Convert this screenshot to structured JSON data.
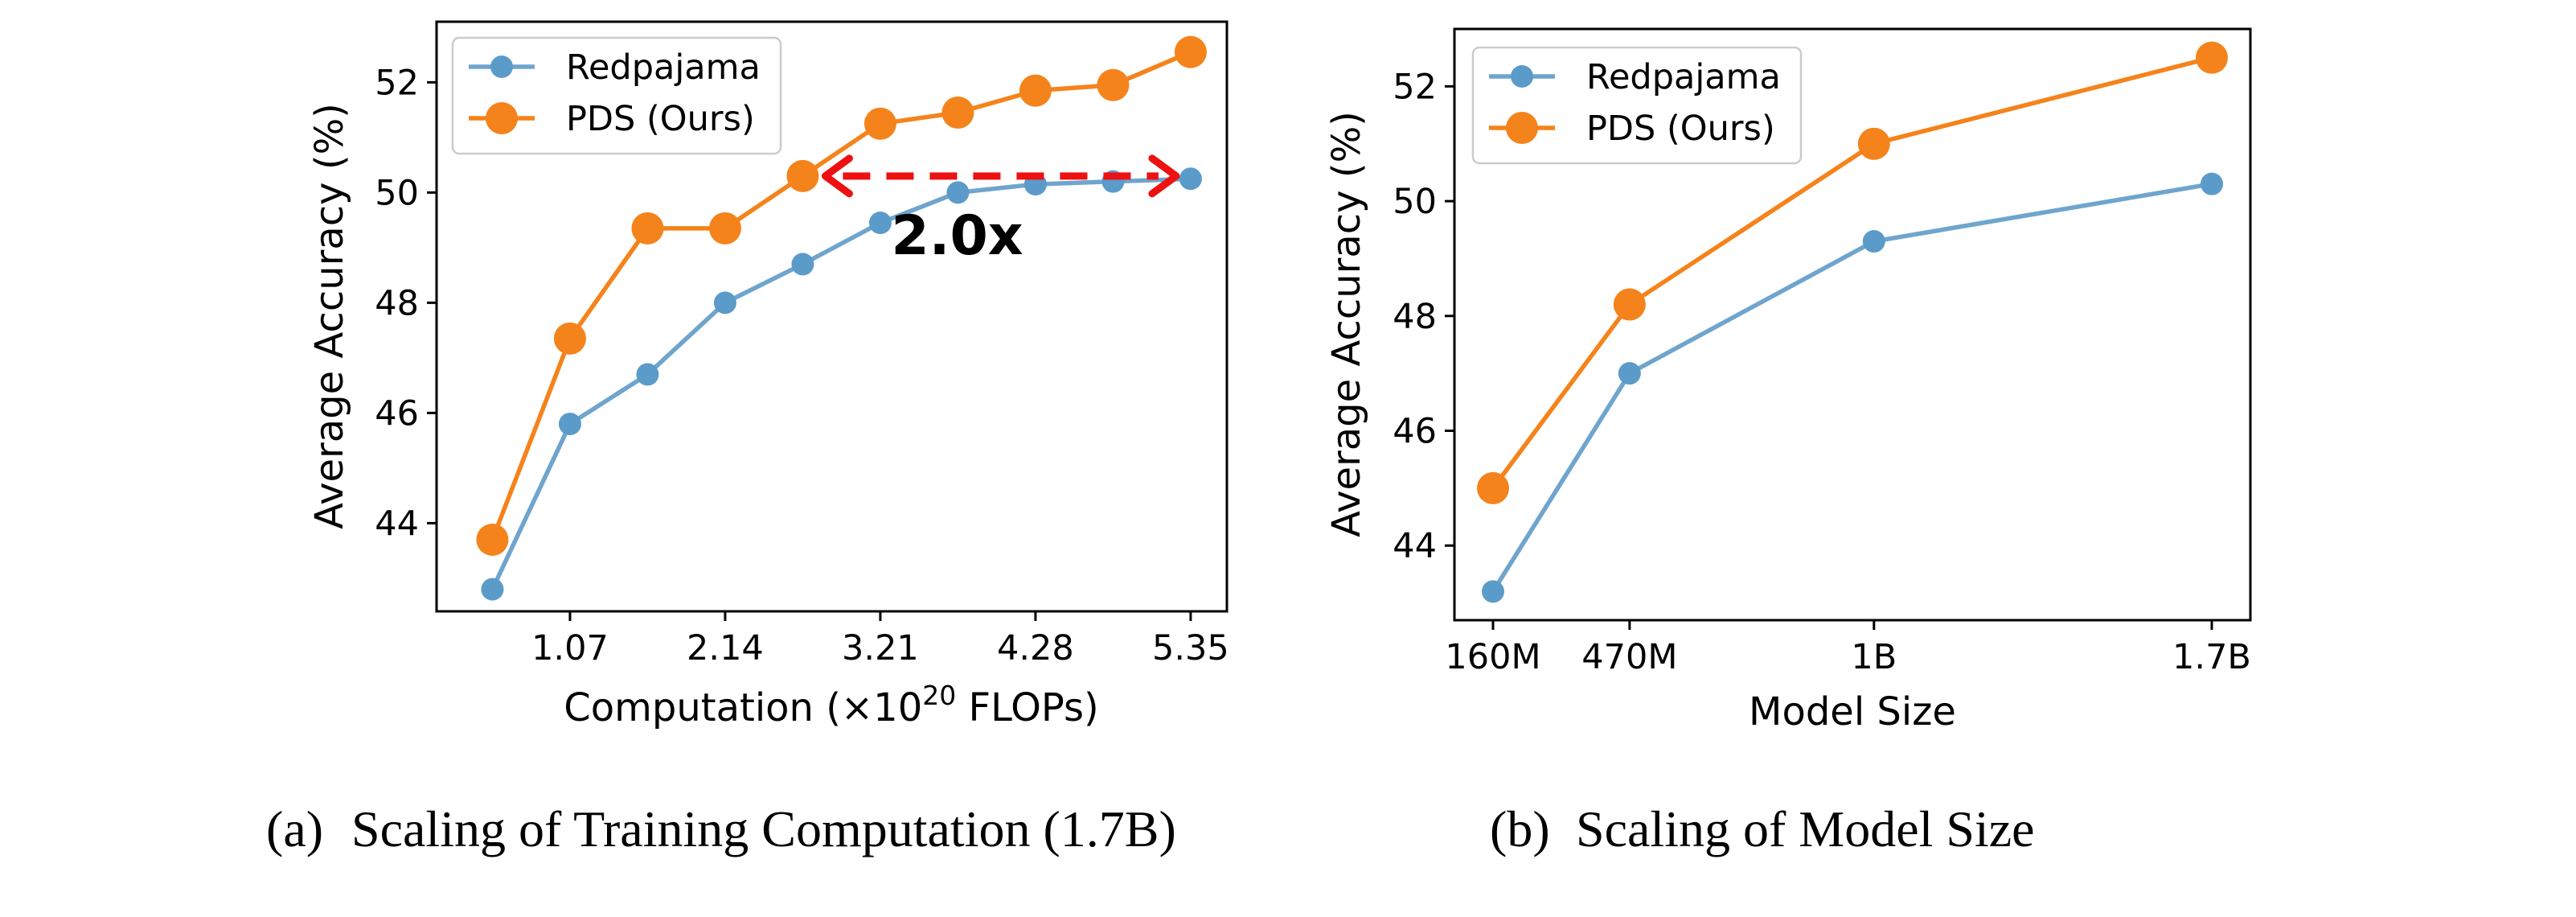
{
  "colors": {
    "redpajama": "#6fa5cd",
    "redpajama_marker": "#5b9bc9",
    "pds": "#f5831b",
    "annotation": "#ee1111",
    "axes": "#000000"
  },
  "chart_data": [
    {
      "type": "line",
      "xlabel": "Computation (×10",
      "xlabel_sup": "20",
      "xlabel_suffix": " FLOPs)",
      "ylabel": "Average Accuracy (%)",
      "xlim": [
        0.15,
        5.6
      ],
      "ylim": [
        42.4,
        53.1
      ],
      "xticks": [
        1.07,
        2.14,
        3.21,
        4.28,
        5.35
      ],
      "xtick_labels": [
        "1.07",
        "2.14",
        "3.21",
        "4.28",
        "5.35"
      ],
      "yticks": [
        44,
        46,
        48,
        50,
        52
      ],
      "ytick_labels": [
        "44",
        "46",
        "48",
        "50",
        "52"
      ],
      "legend_position": "upper-left",
      "series": [
        {
          "name": "Redpajama",
          "x": [
            0.535,
            1.07,
            1.605,
            2.14,
            2.675,
            3.21,
            3.745,
            4.28,
            4.815,
            5.35
          ],
          "y": [
            42.8,
            45.8,
            46.7,
            48.0,
            48.7,
            49.45,
            50.0,
            50.15,
            50.2,
            50.25
          ]
        },
        {
          "name": "PDS (Ours)",
          "x": [
            0.535,
            1.07,
            1.605,
            2.14,
            2.675,
            3.21,
            3.745,
            4.28,
            4.815,
            5.35
          ],
          "y": [
            43.7,
            47.35,
            49.35,
            49.35,
            50.3,
            51.25,
            51.45,
            51.85,
            51.95,
            52.55
          ]
        }
      ],
      "annotation": {
        "text": "2.0x",
        "arrow_from_x": 2.675,
        "arrow_to_x": 5.35,
        "arrow_y": 50.3,
        "text_x": 3.74,
        "text_y": 49.0
      },
      "caption_label": "(a)",
      "caption": "Scaling of Training Computation (1.7B)"
    },
    {
      "type": "line",
      "xlabel": "Model Size",
      "ylabel": "Average Accuracy (%)",
      "xlim": [
        0.0,
        1.0
      ],
      "ylim": [
        42.7,
        53.0
      ],
      "x_categories": [
        "160M",
        "470M",
        "1B",
        "1.7B"
      ],
      "yticks": [
        44,
        46,
        48,
        50,
        52
      ],
      "ytick_labels": [
        "44",
        "46",
        "48",
        "50",
        "52"
      ],
      "legend_position": "upper-left",
      "series": [
        {
          "name": "Redpajama",
          "y": [
            43.2,
            47.0,
            49.3,
            50.3
          ]
        },
        {
          "name": "PDS (Ours)",
          "y": [
            45.0,
            48.2,
            51.0,
            52.5
          ]
        }
      ],
      "caption_label": "(b)",
      "caption": "Scaling of Model Size"
    }
  ]
}
